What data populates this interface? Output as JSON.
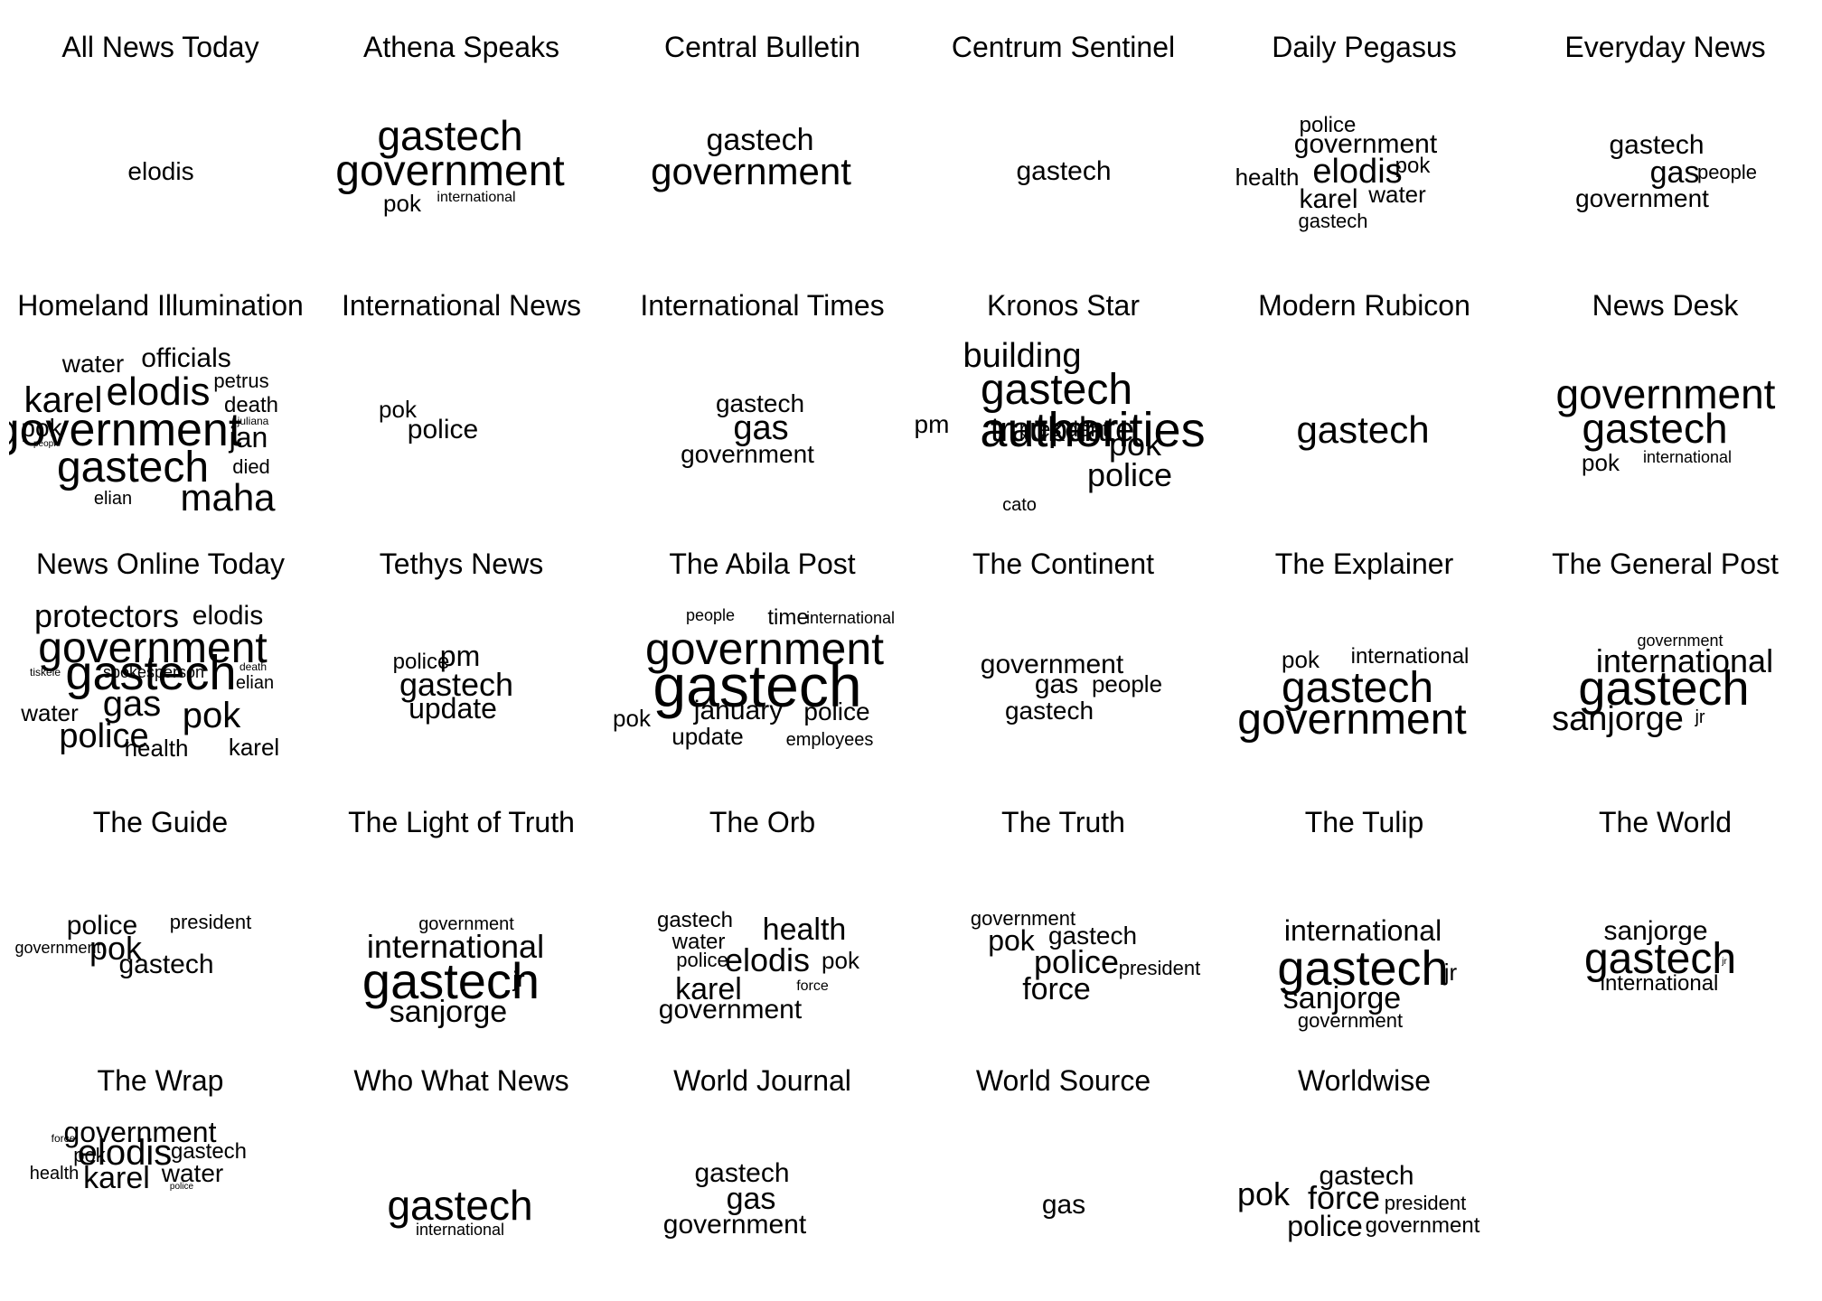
{
  "panels": [
    {
      "title": "All News Today",
      "words": [
        "elodis"
      ]
    },
    {
      "title": "Athena Speaks",
      "words": [
        "gastech",
        "government",
        "pok",
        "international"
      ]
    },
    {
      "title": "Central Bulletin",
      "words": [
        "gastech",
        "government"
      ]
    },
    {
      "title": "Centrum Sentinel",
      "words": [
        "gastech"
      ]
    },
    {
      "title": "Daily Pegasus",
      "words": [
        "police",
        "government",
        "pok",
        "health",
        "elodis",
        "karel",
        "water",
        "gastech"
      ]
    },
    {
      "title": "Everyday News",
      "words": [
        "gastech",
        "gas",
        "people",
        "government"
      ]
    },
    {
      "title": "Homeland Illumination",
      "words": [
        "water",
        "officials",
        "petrus",
        "karel",
        "elodis",
        "death",
        "juliana",
        "pok",
        "government",
        "jan",
        "people",
        "gastech",
        "died",
        "elian",
        "maha"
      ]
    },
    {
      "title": "International News",
      "words": [
        "pok",
        "police"
      ]
    },
    {
      "title": "International Times",
      "words": [
        "gastech",
        "gas",
        "government"
      ]
    },
    {
      "title": "Kronos Star",
      "words": [
        "building",
        "gastech",
        "pm",
        "tracker",
        "authorities",
        "update",
        "pok",
        "police",
        "cato",
        "president"
      ]
    },
    {
      "title": "Modern Rubicon",
      "words": [
        "gastech"
      ]
    },
    {
      "title": "News Desk",
      "words": [
        "government",
        "gastech",
        "pok",
        "international"
      ]
    },
    {
      "title": "News Online Today",
      "words": [
        "protectors",
        "elodis",
        "government",
        "tiskele",
        "gastech",
        "spokesperson",
        "death",
        "elian",
        "water",
        "gas",
        "pok",
        "police",
        "health",
        "karel"
      ]
    },
    {
      "title": "Tethys News",
      "words": [
        "police",
        "pm",
        "gastech",
        "update"
      ]
    },
    {
      "title": "The Abila Post",
      "words": [
        "people",
        "time",
        "international",
        "government",
        "gastech",
        "pok",
        "january",
        "police",
        "update",
        "employees"
      ]
    },
    {
      "title": "The Continent",
      "words": [
        "government",
        "gas",
        "people",
        "gastech"
      ]
    },
    {
      "title": "The Explainer",
      "words": [
        "pok",
        "international",
        "gastech",
        "government"
      ]
    },
    {
      "title": "The General Post",
      "words": [
        "government",
        "international",
        "gastech",
        "sanjorge",
        "jr"
      ]
    },
    {
      "title": "The Guide",
      "words": [
        "police",
        "president",
        "government",
        "pok",
        "gastech"
      ]
    },
    {
      "title": "The Light of Truth",
      "words": [
        "government",
        "international",
        "gastech",
        "jr",
        "sanjorge"
      ]
    },
    {
      "title": "The Orb",
      "words": [
        "gastech",
        "health",
        "water",
        "police",
        "elodis",
        "pok",
        "karel",
        "force",
        "government"
      ]
    },
    {
      "title": "The Truth",
      "words": [
        "government",
        "pok",
        "gastech",
        "police",
        "president",
        "force"
      ]
    },
    {
      "title": "The Tulip",
      "words": [
        "international",
        "gastech",
        "jr",
        "sanjorge",
        "government"
      ]
    },
    {
      "title": "The World",
      "words": [
        "sanjorge",
        "gastech",
        "jr",
        "international"
      ]
    },
    {
      "title": "The Wrap",
      "words": [
        "force",
        "government",
        "pok",
        "elodis",
        "gastech",
        "health",
        "karel",
        "water",
        "police"
      ]
    },
    {
      "title": "Who What News",
      "words": [
        "gastech",
        "international"
      ]
    },
    {
      "title": "World Journal",
      "words": [
        "gastech",
        "gas",
        "government"
      ]
    },
    {
      "title": "World Source",
      "words": [
        "gas"
      ]
    },
    {
      "title": "Worldwise",
      "words": [
        "gastech",
        "pok",
        "force",
        "president",
        "police",
        "government"
      ]
    }
  ]
}
